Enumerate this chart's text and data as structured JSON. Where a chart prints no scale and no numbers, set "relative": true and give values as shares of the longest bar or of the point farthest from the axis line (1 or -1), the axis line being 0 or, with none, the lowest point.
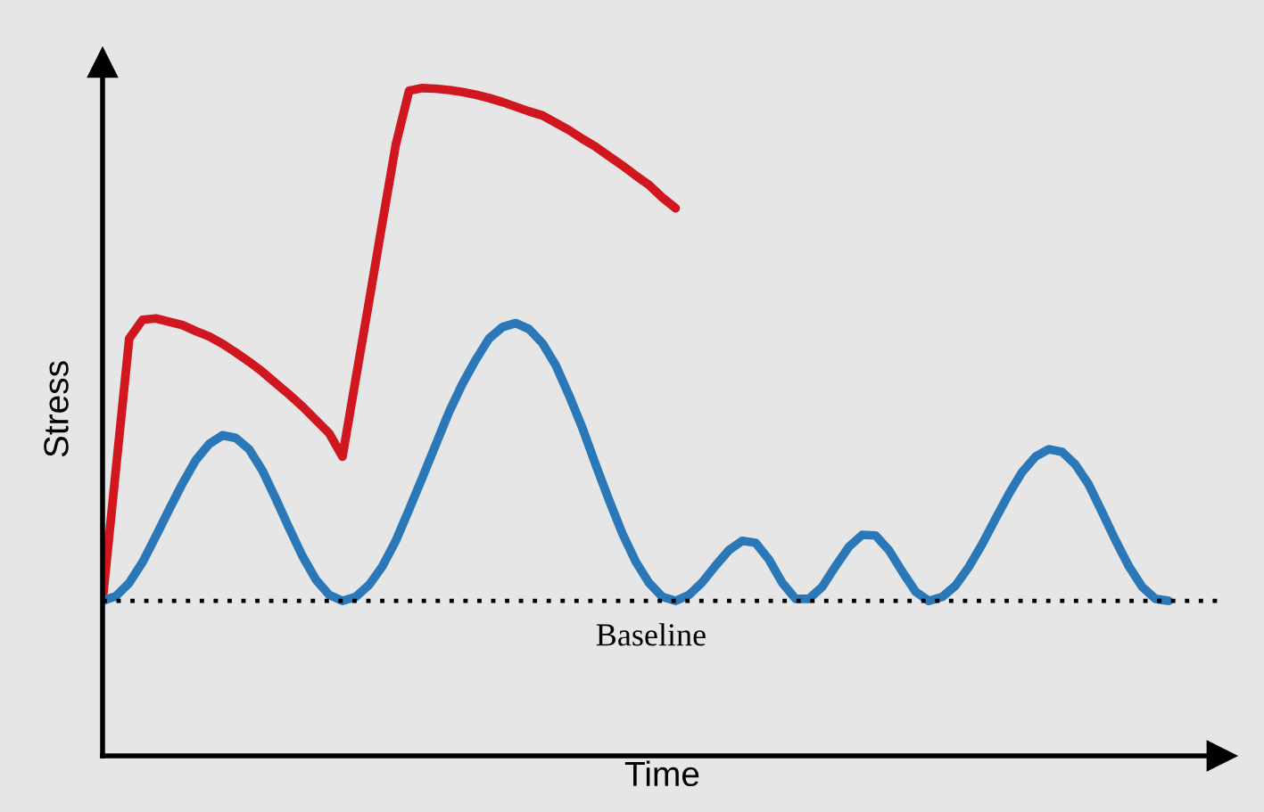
{
  "chart_data": {
    "type": "line",
    "xlabel": "Time",
    "ylabel": "Stress",
    "relative": true,
    "tick_labels": false,
    "legend": false,
    "marker": "none",
    "line_style": "solid",
    "categories": [
      null,
      null,
      null,
      null,
      null,
      null,
      null,
      null,
      null,
      null,
      null,
      null,
      null,
      null,
      null,
      null,
      null,
      null,
      null,
      null,
      null,
      null,
      null,
      null,
      null,
      null,
      null,
      null,
      null,
      null,
      null,
      null,
      null,
      null,
      null,
      null,
      null,
      null,
      null,
      null,
      null,
      null,
      null,
      null,
      null,
      null,
      null,
      null,
      null,
      null,
      null,
      null,
      null,
      null,
      null,
      null,
      null,
      null,
      null,
      null,
      null,
      null,
      null,
      null,
      null,
      null,
      null,
      null,
      null,
      null,
      null,
      null,
      null,
      null,
      null,
      null,
      null,
      null,
      null,
      null,
      null
    ],
    "series": [
      {
        "color": "#d0161e",
        "values": [
          0.232,
          0.429,
          0.625,
          0.653,
          0.655,
          0.65,
          0.645,
          0.636,
          0.628,
          0.617,
          0.604,
          0.59,
          0.575,
          0.558,
          0.541,
          0.523,
          0.503,
          0.483,
          0.448,
          0.565,
          0.681,
          0.799,
          0.915,
          0.996,
          1.0,
          0.999,
          0.997,
          0.994,
          0.99,
          0.985,
          0.979,
          0.972,
          0.965,
          0.959,
          0.948,
          0.937,
          0.924,
          0.912,
          0.898,
          0.884,
          0.869,
          0.855,
          0.836,
          0.82,
          null,
          null,
          null,
          null,
          null,
          null,
          null,
          null,
          null,
          null,
          null,
          null,
          null,
          null,
          null,
          null,
          null,
          null,
          null,
          null,
          null,
          null,
          null,
          null,
          null,
          null,
          null,
          null,
          null,
          null,
          null,
          null,
          null,
          null,
          null,
          null,
          null
        ]
      },
      {
        "color": "#2a78b8",
        "values": [
          0.232,
          0.239,
          0.259,
          0.29,
          0.329,
          0.369,
          0.408,
          0.443,
          0.467,
          0.48,
          0.476,
          0.459,
          0.427,
          0.385,
          0.341,
          0.299,
          0.264,
          0.241,
          0.232,
          0.238,
          0.256,
          0.284,
          0.322,
          0.369,
          0.417,
          0.466,
          0.515,
          0.557,
          0.593,
          0.625,
          0.642,
          0.648,
          0.639,
          0.618,
          0.585,
          0.54,
          0.491,
          0.436,
          0.383,
          0.333,
          0.291,
          0.259,
          0.238,
          0.232,
          0.241,
          0.26,
          0.285,
          0.308,
          0.322,
          0.319,
          0.294,
          0.259,
          0.235,
          0.235,
          0.253,
          0.284,
          0.313,
          0.331,
          0.33,
          0.308,
          0.276,
          0.246,
          0.232,
          0.238,
          0.255,
          0.283,
          0.317,
          0.355,
          0.392,
          0.425,
          0.448,
          0.459,
          0.455,
          0.436,
          0.406,
          0.365,
          0.323,
          0.284,
          0.253,
          0.235,
          0.232
        ]
      }
    ],
    "ref_lines": [
      {
        "axis": "y",
        "value": 0.232,
        "label": "Baseline",
        "color": "#000000",
        "line_style": "dotted"
      }
    ]
  }
}
